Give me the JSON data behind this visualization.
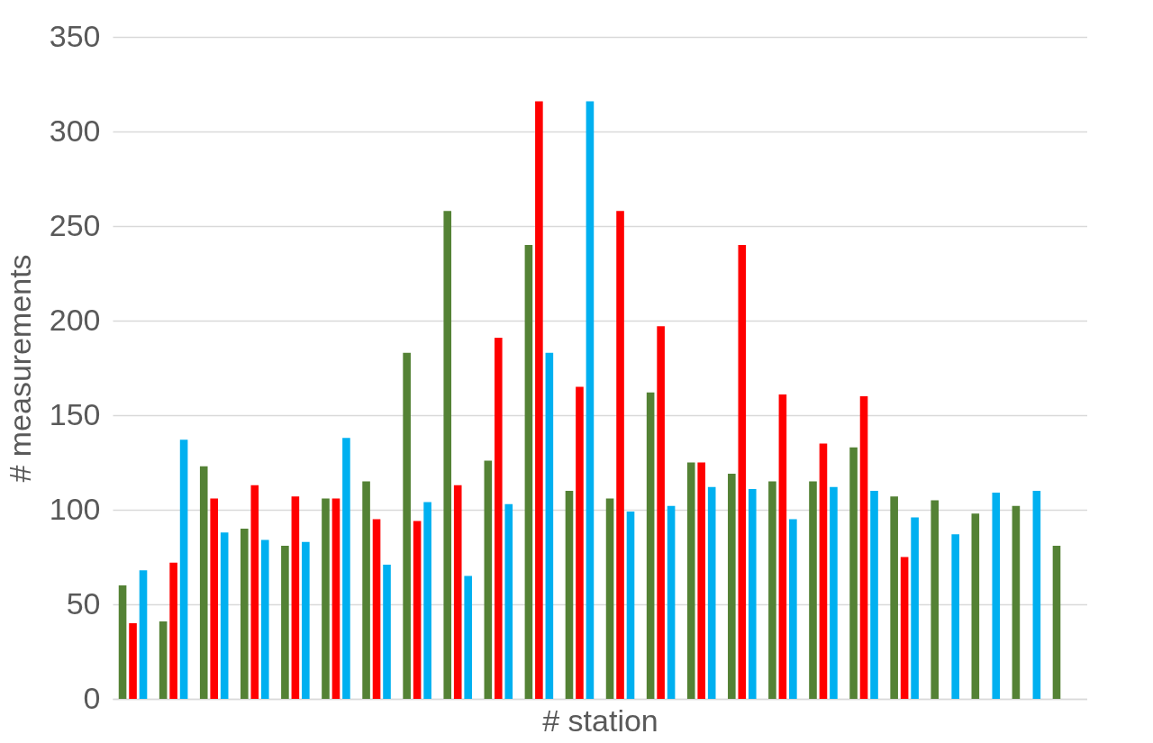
{
  "chart_data": {
    "type": "bar",
    "xlabel": "# station",
    "ylabel": "# measurements",
    "categories": [
      null,
      null,
      null,
      null,
      null,
      null,
      null,
      null,
      null,
      null,
      null,
      null,
      null,
      null,
      null,
      null,
      null,
      null,
      null,
      null,
      null,
      null,
      null,
      null
    ],
    "series": [
      {
        "color": "#548235",
        "values": [
          60,
          41,
          123,
          90,
          81,
          106,
          115,
          183,
          258,
          126,
          240,
          110,
          106,
          162,
          125,
          119,
          115,
          115,
          133,
          107,
          105,
          98,
          102,
          81
        ]
      },
      {
        "color": "#ff0000",
        "values": [
          40,
          72,
          106,
          113,
          107,
          106,
          95,
          94,
          113,
          191,
          316,
          165,
          258,
          197,
          125,
          240,
          161,
          135,
          160,
          75,
          null,
          null,
          null,
          null
        ]
      },
      {
        "color": "#00b0f0",
        "values": [
          68,
          137,
          88,
          84,
          83,
          138,
          71,
          104,
          65,
          103,
          183,
          316,
          99,
          102,
          112,
          111,
          95,
          112,
          110,
          96,
          87,
          109,
          110,
          null
        ]
      }
    ],
    "ylim": [
      0,
      350
    ],
    "yticks": [
      0,
      50,
      100,
      150,
      200,
      250,
      300,
      350
    ],
    "grid": "y"
  }
}
